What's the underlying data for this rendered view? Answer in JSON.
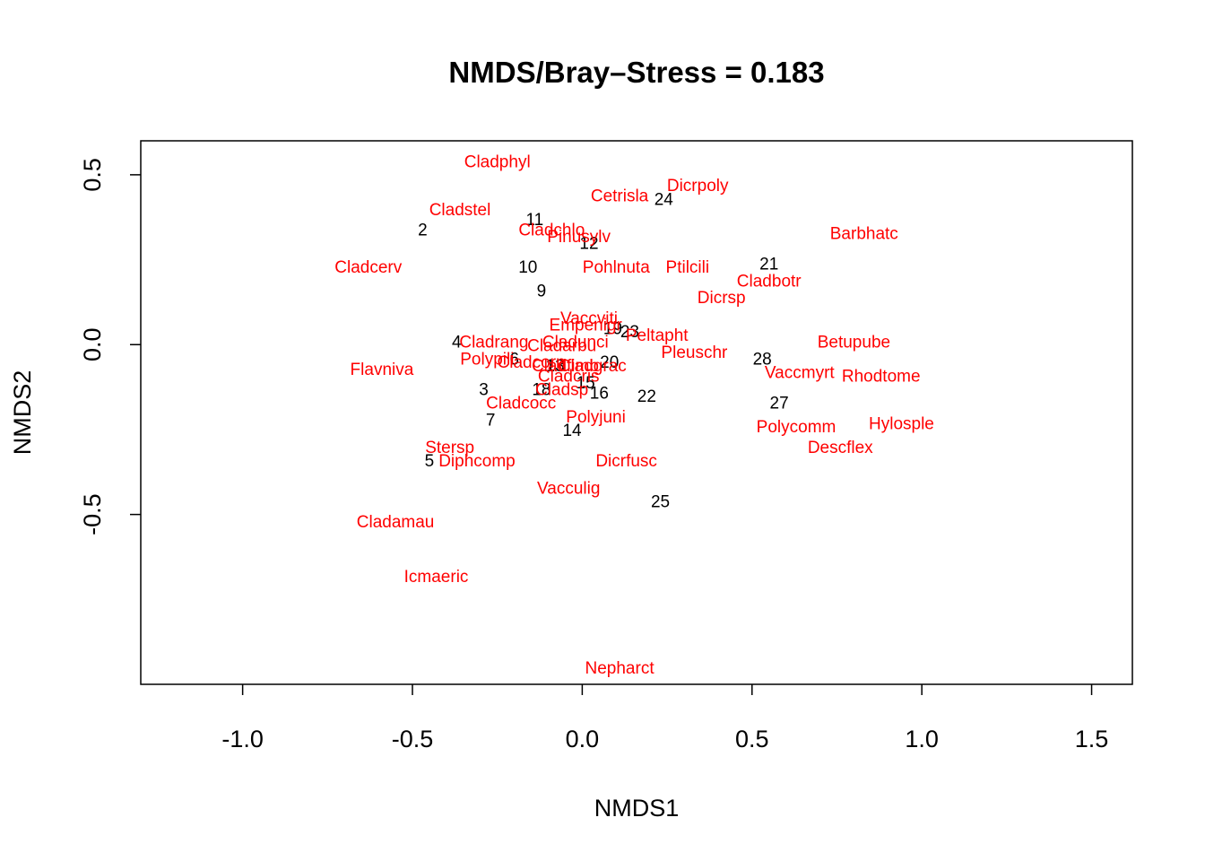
{
  "chart_data": {
    "type": "scatter",
    "title": "NMDS/Bray–Stress = 0.183",
    "xlabel": "NMDS1",
    "ylabel": "NMDS2",
    "xlim": [
      -1.3,
      1.62
    ],
    "ylim": [
      -1.0,
      0.6
    ],
    "x_ticks": [
      -1.0,
      -0.5,
      0.0,
      0.5,
      1.0,
      1.5
    ],
    "x_tick_labels": [
      "-1.0",
      "-0.5",
      "0.0",
      "0.5",
      "1.0",
      "1.5"
    ],
    "y_ticks": [
      -0.5,
      0.0,
      0.5
    ],
    "y_tick_labels": [
      "-0.5",
      "0.0",
      "0.5"
    ],
    "grid": false,
    "species_color": "#ff0000",
    "site_color": "#000000",
    "sites": [
      {
        "label": "2",
        "x": -0.47,
        "y": 0.34
      },
      {
        "label": "3",
        "x": -0.29,
        "y": -0.13
      },
      {
        "label": "4",
        "x": -0.37,
        "y": 0.01
      },
      {
        "label": "5",
        "x": -0.45,
        "y": -0.34
      },
      {
        "label": "6",
        "x": -0.2,
        "y": -0.04
      },
      {
        "label": "7",
        "x": -0.27,
        "y": -0.22
      },
      {
        "label": "9",
        "x": -0.12,
        "y": 0.16
      },
      {
        "label": "10",
        "x": -0.16,
        "y": 0.23
      },
      {
        "label": "11",
        "x": -0.14,
        "y": 0.37
      },
      {
        "label": "12",
        "x": 0.02,
        "y": 0.3
      },
      {
        "label": "13",
        "x": -0.08,
        "y": -0.06
      },
      {
        "label": "14",
        "x": -0.03,
        "y": -0.25
      },
      {
        "label": "15",
        "x": 0.01,
        "y": -0.11
      },
      {
        "label": "16",
        "x": 0.05,
        "y": -0.14
      },
      {
        "label": "18",
        "x": -0.12,
        "y": -0.13
      },
      {
        "label": "19",
        "x": 0.09,
        "y": 0.05
      },
      {
        "label": "20",
        "x": 0.08,
        "y": -0.05
      },
      {
        "label": "21",
        "x": 0.55,
        "y": 0.24
      },
      {
        "label": "22",
        "x": 0.19,
        "y": -0.15
      },
      {
        "label": "23",
        "x": 0.14,
        "y": 0.04
      },
      {
        "label": "24",
        "x": 0.24,
        "y": 0.43
      },
      {
        "label": "25",
        "x": 0.23,
        "y": -0.46
      },
      {
        "label": "27",
        "x": 0.58,
        "y": -0.17
      },
      {
        "label": "28",
        "x": 0.53,
        "y": -0.04
      }
    ],
    "species": [
      {
        "label": "Cladphyl",
        "x": -0.25,
        "y": 0.54
      },
      {
        "label": "Dicrpoly",
        "x": 0.34,
        "y": 0.47
      },
      {
        "label": "Cetrisla",
        "x": 0.11,
        "y": 0.44
      },
      {
        "label": "Cladstel",
        "x": -0.36,
        "y": 0.4
      },
      {
        "label": "Cladchlo",
        "x": -0.09,
        "y": 0.34
      },
      {
        "label": "Pinusylv",
        "x": -0.01,
        "y": 0.32
      },
      {
        "label": "Barbhatc",
        "x": 0.83,
        "y": 0.33
      },
      {
        "label": "Cladcerv",
        "x": -0.63,
        "y": 0.23
      },
      {
        "label": "Pohlnuta",
        "x": 0.1,
        "y": 0.23
      },
      {
        "label": "Ptilcili",
        "x": 0.31,
        "y": 0.23
      },
      {
        "label": "Cladbotr",
        "x": 0.55,
        "y": 0.19
      },
      {
        "label": "Dicrsp",
        "x": 0.41,
        "y": 0.14
      },
      {
        "label": "Vaccviti",
        "x": 0.02,
        "y": 0.08
      },
      {
        "label": "Empenigr",
        "x": 0.01,
        "y": 0.06
      },
      {
        "label": "Peltapht",
        "x": 0.22,
        "y": 0.03
      },
      {
        "label": "Cladrang",
        "x": -0.26,
        "y": 0.01
      },
      {
        "label": "Cladunci",
        "x": -0.02,
        "y": 0.01
      },
      {
        "label": "Cladarbu",
        "x": -0.06,
        "y": 0.0
      },
      {
        "label": "Pleuschr",
        "x": 0.33,
        "y": -0.02
      },
      {
        "label": "Betupube",
        "x": 0.8,
        "y": 0.01
      },
      {
        "label": "Polypili",
        "x": -0.28,
        "y": -0.04
      },
      {
        "label": "Cladcorn",
        "x": -0.15,
        "y": -0.05
      },
      {
        "label": "Cladfimb",
        "x": -0.05,
        "y": -0.06
      },
      {
        "label": "Cladgrac",
        "x": 0.03,
        "y": -0.06
      },
      {
        "label": "Flavniva",
        "x": -0.59,
        "y": -0.07
      },
      {
        "label": "Vaccmyrt",
        "x": 0.64,
        "y": -0.08
      },
      {
        "label": "Rhodtome",
        "x": 0.88,
        "y": -0.09
      },
      {
        "label": "Cladcris",
        "x": -0.04,
        "y": -0.09
      },
      {
        "label": "Cladsp",
        "x": -0.06,
        "y": -0.13
      },
      {
        "label": "Cladcocc",
        "x": -0.18,
        "y": -0.17
      },
      {
        "label": "Cladamau",
        "x": -0.55,
        "y": -0.52
      },
      {
        "label": "Polyjuni",
        "x": 0.04,
        "y": -0.21
      },
      {
        "label": "Hylosple",
        "x": 0.94,
        "y": -0.23
      },
      {
        "label": "Polycomm",
        "x": 0.63,
        "y": -0.24
      },
      {
        "label": "Descflex",
        "x": 0.76,
        "y": -0.3
      },
      {
        "label": "Stersp",
        "x": -0.39,
        "y": -0.3
      },
      {
        "label": "Diphcomp",
        "x": -0.31,
        "y": -0.34
      },
      {
        "label": "Dicrfusc",
        "x": 0.13,
        "y": -0.34
      },
      {
        "label": "Vacculig",
        "x": -0.04,
        "y": -0.42
      },
      {
        "label": "Icmaeric",
        "x": -0.43,
        "y": -0.68
      },
      {
        "label": "Nepharct",
        "x": 0.11,
        "y": -0.95
      }
    ]
  }
}
